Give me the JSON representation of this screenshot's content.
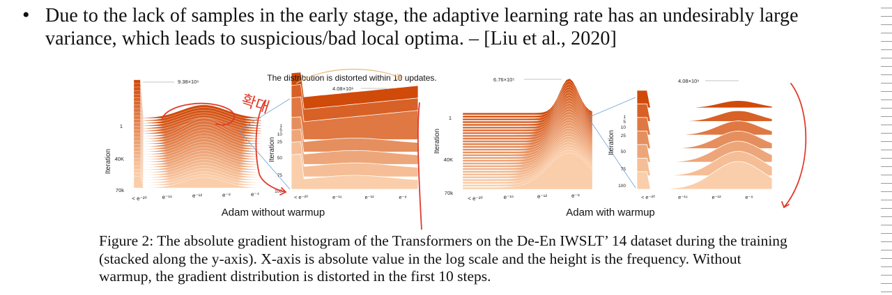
{
  "bullet": {
    "marker": "•",
    "text": "Due to the lack of samples in the early stage, the adaptive learning rate has an undesirably large variance, which leads to suspicious/bad local optima. – [Liu et al., 2020]"
  },
  "figure": {
    "annotation_top": "The distribution is distorted within 10 updates.",
    "handwritten_note": "확대",
    "left_group": {
      "label": "Adam without warmup",
      "main": {
        "peak_label": "9.38×10⁶",
        "ylabel": "Iteration",
        "yticks": [
          "1",
          "40K",
          "70k"
        ],
        "xticks": [
          "< e⁻²⁰",
          "e⁻¹⁶",
          "e⁻¹²",
          "e⁻⁸",
          "e⁻⁴"
        ]
      },
      "zoom": {
        "peak_label": "4.08×10⁶",
        "ylabel": "Iteration",
        "yticks": [
          "1",
          "5",
          "10",
          "25",
          "50",
          "75",
          "100"
        ],
        "xticks": [
          "< e⁻²⁰",
          "e⁻¹⁶",
          "e⁻¹²",
          "e⁻⁸"
        ]
      }
    },
    "right_group": {
      "label": "Adam with warmup",
      "main": {
        "peak_label": "6.76×10⁵",
        "ylabel": "Iteration",
        "yticks": [
          "1",
          "40K",
          "70k"
        ],
        "xticks": [
          "< e⁻²⁰",
          "e⁻¹⁶",
          "e⁻¹²",
          "e⁻⁸"
        ]
      },
      "zoom": {
        "peak_label": "4.08×10⁶",
        "ylabel": "Iteration",
        "yticks": [
          "1",
          "5",
          "10",
          "25",
          "50",
          "75",
          "100"
        ],
        "xticks": [
          "< e⁻²⁰",
          "e⁻¹⁶",
          "e⁻¹²",
          "e⁻⁸"
        ]
      }
    }
  },
  "caption": "Figure 2: The absolute gradient histogram of the Transformers on the De-En IWSLT’ 14 dataset during the training (stacked along the y-axis). X-axis is absolute value in the log scale and the height is the frequency. Without warmup, the gradient distribution is distorted in the first 10 steps.",
  "colors": {
    "dark_orange": "#d04a0a",
    "light_orange": "#f8c49c",
    "ink_red": "#e03a2a"
  }
}
